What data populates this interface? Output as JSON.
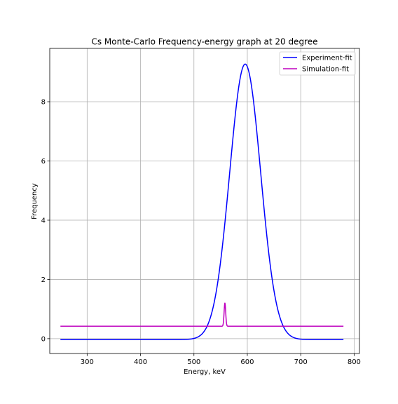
{
  "chart_data": {
    "type": "line",
    "title": "Cs Monte-Carlo Frequency-energy graph at 20 degree",
    "xlabel": "Energy, keV",
    "ylabel": "Frequency",
    "xlim": [
      230,
      810
    ],
    "ylim": [
      -0.5,
      9.8
    ],
    "xticks": [
      300,
      400,
      500,
      600,
      700,
      800
    ],
    "yticks": [
      0,
      2,
      4,
      6,
      8
    ],
    "grid": true,
    "legend_position": "upper right",
    "series": [
      {
        "name": "Experiment-fit",
        "color": "#0000ff",
        "model": "gaussian",
        "params": {
          "amplitude": 9.3,
          "center": 596,
          "sigma": 29,
          "baseline": -0.03
        },
        "x_range": [
          250,
          780
        ]
      },
      {
        "name": "Simulation-fit",
        "color": "#bf00bf",
        "model": "gaussian",
        "params": {
          "amplitude": 0.78,
          "center": 558,
          "sigma": 1.5,
          "baseline": 0.42
        },
        "x_range": [
          250,
          780
        ]
      }
    ]
  }
}
